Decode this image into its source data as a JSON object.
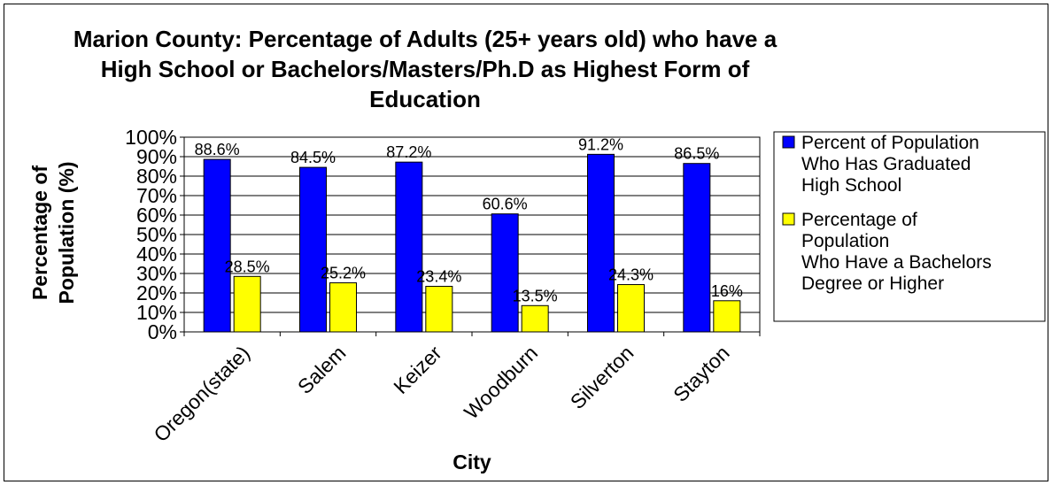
{
  "chart_data": {
    "type": "bar",
    "title_lines": [
      "Marion County: Percentage of Adults (25+ years old) who have a",
      "High School or Bachelors/Masters/Ph.D as Highest Form of",
      "Education"
    ],
    "xlabel": "City",
    "ylabel_lines": [
      "Percentage of",
      "Population (%)"
    ],
    "categories": [
      "Oregon(state)",
      "Salem",
      "Keizer",
      "Woodburn",
      "Silverton",
      "Stayton"
    ],
    "ylim": [
      0,
      100
    ],
    "yticks": [
      "0%",
      "10%",
      "20%",
      "30%",
      "40%",
      "50%",
      "60%",
      "70%",
      "80%",
      "90%",
      "100%"
    ],
    "grid": true,
    "legend_position": "right",
    "series": [
      {
        "name_lines": [
          "Percent of Population",
          "Who Has Graduated",
          "High School"
        ],
        "color": "#0000ff",
        "values": [
          88.6,
          84.5,
          87.2,
          60.6,
          91.2,
          86.5
        ],
        "labels": [
          "88.6%",
          "84.5%",
          "87.2%",
          "60.6%",
          "91.2%",
          "86.5%"
        ]
      },
      {
        "name_lines": [
          "Percentage of",
          "Population",
          "Who Have a Bachelors",
          "Degree or Higher"
        ],
        "color": "#ffff00",
        "values": [
          28.5,
          25.2,
          23.4,
          13.5,
          24.3,
          16
        ],
        "labels": [
          "28.5%",
          "25.2%",
          "23.4%",
          "13.5%",
          "24.3%",
          "16%"
        ]
      }
    ]
  }
}
